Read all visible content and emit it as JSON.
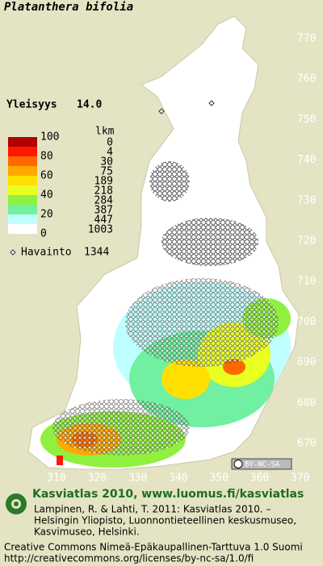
{
  "title": "Platanthera bifolia",
  "frequency": {
    "label": "Yleisyys",
    "value": "14.0"
  },
  "legend": {
    "count_header": "lkm",
    "levels": [
      100,
      80,
      60,
      40,
      20,
      0
    ],
    "colors": [
      "#b00000",
      "#ff1800",
      "#ff6a00",
      "#ffa800",
      "#ffe000",
      "#e8ff20",
      "#90f040",
      "#70f0a0",
      "#c0ffff",
      "#ffffff"
    ],
    "counts": [
      0,
      4,
      30,
      75,
      189,
      218,
      284,
      387,
      447,
      1003
    ],
    "observation_label": "Havainto",
    "observation_count": 1344
  },
  "grid": {
    "y_labels": [
      770,
      760,
      750,
      740,
      730,
      720,
      710,
      700,
      690,
      680,
      670
    ],
    "x_labels": [
      310,
      320,
      330,
      340,
      350,
      360,
      370
    ]
  },
  "license_badge": "BY-NC-SA",
  "footer": {
    "title": "Kasviatlas 2010, www.luomus.fi/kasviatlas",
    "citation": [
      "Lampinen, R. & Lahti, T. 2011: Kasviatlas 2010. –",
      "Helsingin Yliopisto, Luonnontieteellinen keskusmuseo,",
      "Kasvimuseo, Helsinki."
    ],
    "license": [
      "Creative Commons Nimeä-Epäkaupallinen-Tarttuva 1.0 Suomi",
      "http://creativecommons.org/licenses/by-nc-sa/1.0/fi"
    ]
  }
}
